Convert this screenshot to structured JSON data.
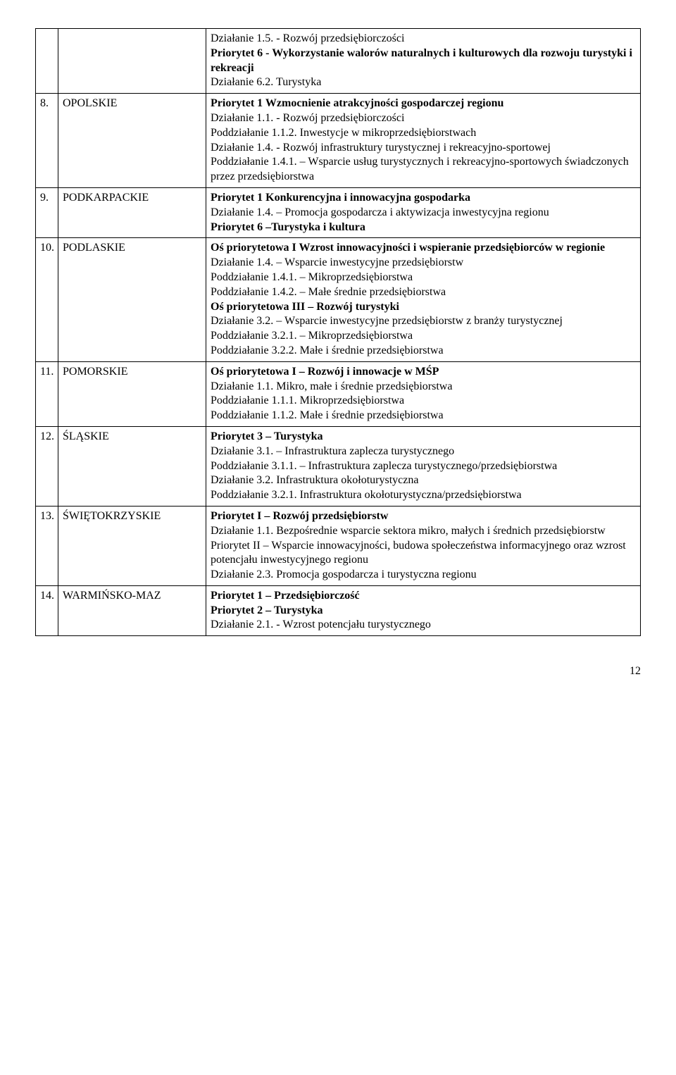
{
  "rows": [
    {
      "num": "",
      "region": "",
      "lines": [
        {
          "t": "Działanie 1.5. - Rozwój przedsiębiorczości"
        },
        {
          "t": "Priorytet 6 - Wykorzystanie walorów naturalnych i kulturowych dla rozwoju turystyki i rekreacji",
          "b": true
        },
        {
          "t": "Działanie 6.2. Turystyka"
        }
      ]
    },
    {
      "num": "8.",
      "region": "OPOLSKIE",
      "lines": [
        {
          "t": "Priorytet 1 Wzmocnienie atrakcyjności gospodarczej regionu",
          "b": true
        },
        {
          "t": "Działanie 1.1. - Rozwój przedsiębiorczości"
        },
        {
          "t": "Poddziałanie 1.1.2. Inwestycje w mikroprzedsiębiorstwach"
        },
        {
          "t": "Działanie 1.4. - Rozwój infrastruktury turystycznej i rekreacyjno-sportowej"
        },
        {
          "t": "Poddziałanie 1.4.1. – Wsparcie usług turystycznych i rekreacyjno-sportowych świadczonych przez przedsiębiorstwa"
        }
      ]
    },
    {
      "num": "9.",
      "region": "PODKARPACKIE",
      "lines": [
        {
          "t": "Priorytet 1 Konkurencyjna i innowacyjna gospodarka",
          "b": true
        },
        {
          "t": "Działanie 1.4. – Promocja gospodarcza i aktywizacja inwestycyjna regionu"
        },
        {
          "t": "Priorytet 6 –Turystyka i kultura",
          "b": true
        }
      ]
    },
    {
      "num": "10.",
      "region": "PODLASKIE",
      "lines": [
        {
          "t": "Oś priorytetowa I Wzrost innowacyjności i wspieranie przedsiębiorców w regionie",
          "b": true
        },
        {
          "t": "Działanie 1.4. – Wsparcie inwestycyjne przedsiębiorstw"
        },
        {
          "t": "Poddziałanie 1.4.1. – Mikroprzedsiębiorstwa"
        },
        {
          "t": "Poddziałanie 1.4.2. – Małe średnie przedsiębiorstwa"
        },
        {
          "t": "Oś priorytetowa III – Rozwój turystyki",
          "b": true
        },
        {
          "t": "Działanie 3.2. – Wsparcie inwestycyjne przedsiębiorstw z branży turystycznej"
        },
        {
          "t": "Poddziałanie 3.2.1. – Mikroprzedsiębiorstwa"
        },
        {
          "t": "Poddziałanie 3.2.2. Małe i średnie przedsiębiorstwa"
        }
      ]
    },
    {
      "num": "11.",
      "region": "POMORSKIE",
      "lines": [
        {
          "t": "Oś priorytetowa I – Rozwój i innowacje w MŚP",
          "b": true
        },
        {
          "t": "Działanie 1.1. Mikro, małe i średnie przedsiębiorstwa"
        },
        {
          "t": "Poddziałanie 1.1.1. Mikroprzedsiębiorstwa"
        },
        {
          "t": "Poddziałanie 1.1.2. Małe i średnie przedsiębiorstwa"
        }
      ]
    },
    {
      "num": "12.",
      "region": "ŚLĄSKIE",
      "lines": [
        {
          "t": "Priorytet 3 – Turystyka",
          "b": true
        },
        {
          "t": "Działanie 3.1. – Infrastruktura zaplecza turystycznego"
        },
        {
          "t": "Poddziałanie 3.1.1. – Infrastruktura zaplecza turystycznego/przedsiębiorstwa"
        },
        {
          "t": "Działanie 3.2. Infrastruktura okołoturystyczna"
        },
        {
          "t": "Poddziałanie 3.2.1. Infrastruktura okołoturystyczna/przedsiębiorstwa"
        }
      ]
    },
    {
      "num": "13.",
      "region": "ŚWIĘTOKRZYSKIE",
      "lines": [
        {
          "t": "Priorytet I – Rozwój przedsiębiorstw",
          "b": true
        },
        {
          "t": "Działanie 1.1. Bezpośrednie wsparcie sektora mikro, małych i średnich przedsiębiorstw"
        },
        {
          "t": "Priorytet II – Wsparcie innowacyjności, budowa społeczeństwa informacyjnego oraz wzrost potencjału inwestycyjnego regionu"
        },
        {
          "t": "Działanie 2.3. Promocja gospodarcza i turystyczna regionu"
        }
      ]
    },
    {
      "num": "14.",
      "region": "WARMIŃSKO-MAZ",
      "lines": [
        {
          "t": "Priorytet 1 – Przedsiębiorczość",
          "b": true
        },
        {
          "t": "Priorytet 2 – Turystyka",
          "b": true
        },
        {
          "t": "Działanie 2.1. - Wzrost potencjału turystycznego"
        }
      ]
    }
  ],
  "pageNumber": "12"
}
